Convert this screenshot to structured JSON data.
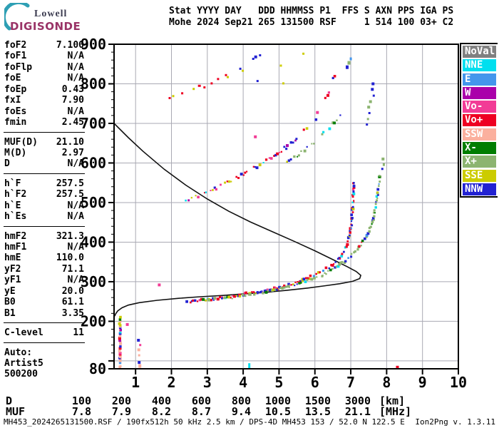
{
  "logo": {
    "line1": "Lowell",
    "line2": "DIGISONDE"
  },
  "header": {
    "line1": "Stat YYYY DAY   DDD HHMMSS P1  FFS S AXN PPS IGA PS",
    "line2": "Mohe 2024 Sep21 265 131500 RSF     1 514 100 03+ C2"
  },
  "panel": {
    "sections": [
      [
        [
          "foF2",
          "7.100"
        ],
        [
          "foF1",
          "N/A"
        ],
        [
          "foFlp",
          "N/A"
        ],
        [
          "foE",
          "N/A"
        ],
        [
          "foEp",
          "0.43"
        ],
        [
          "fxI",
          "7.90"
        ],
        [
          "foEs",
          "N/A"
        ],
        [
          "fmin",
          "2.45"
        ]
      ],
      [
        [
          "MUF(D)",
          "21.10"
        ],
        [
          "M(D)",
          "2.97"
        ],
        [
          "D",
          "N/A"
        ]
      ],
      [
        [
          "h`F",
          "257.5"
        ],
        [
          "h`F2",
          "257.5"
        ],
        [
          "h`E",
          "N/A"
        ],
        [
          "h`Es",
          "N/A"
        ]
      ],
      [
        [
          "hmF2",
          "321.3"
        ],
        [
          "hmF1",
          "N/A"
        ],
        [
          "hmE",
          "110.0"
        ],
        [
          "yF2",
          "71.1"
        ],
        [
          "yF1",
          "N/A"
        ],
        [
          "yE",
          "20.0"
        ],
        [
          "B0",
          "61.1"
        ],
        [
          "B1",
          "3.35"
        ]
      ],
      [
        [
          "C-level",
          "11"
        ]
      ],
      [
        [
          "Auto:",
          ""
        ],
        [
          "Artist5",
          ""
        ],
        [
          "500200",
          ""
        ]
      ]
    ]
  },
  "legend": {
    "items": [
      {
        "key": "noval",
        "label": "NoVal",
        "color": "#808080"
      },
      {
        "key": "nne",
        "label": "NNE",
        "color": "#00DFEF"
      },
      {
        "key": "e",
        "label": "E",
        "color": "#4496EC"
      },
      {
        "key": "w",
        "label": "W",
        "color": "#AA00AA"
      },
      {
        "key": "vo_minus",
        "label": "Vo-",
        "color": "#F23C96"
      },
      {
        "key": "vo_plus",
        "label": "Vo+",
        "color": "#EE0022"
      },
      {
        "key": "ssw",
        "label": "SSW",
        "color": "#FBB09E"
      },
      {
        "key": "x_minus",
        "label": "X-",
        "color": "#007D00"
      },
      {
        "key": "x_plus",
        "label": "X+",
        "color": "#8CB470"
      },
      {
        "key": "sse",
        "label": "SSE",
        "color": "#CCCC00"
      },
      {
        "key": "nnw",
        "label": "NNW",
        "color": "#2222D2"
      }
    ]
  },
  "distance_table": {
    "row1_label": "D",
    "row2_label": "MUF",
    "distances": [
      "100",
      "200",
      "400",
      "600",
      "800",
      "1000",
      "1500",
      "3000"
    ],
    "distance_unit": "[km]",
    "muf_values": [
      "7.8",
      "7.9",
      "8.2",
      "8.7",
      "9.4",
      "10.5",
      "13.5",
      "21.1"
    ],
    "muf_unit": "[MHz]"
  },
  "status_bar": {
    "left": "MH453_2024265131500.RSF / 190fx512h 50 kHz 2.5 km / DPS-4D MH453 153 / 52.0 N 122.5 E",
    "right": "Ion2Png v. 1.3.11"
  },
  "chart_data": {
    "type": "scatter",
    "title": "",
    "xlabel": "",
    "ylabel": "",
    "x_range": [
      0.4,
      10
    ],
    "y_range": [
      80,
      900
    ],
    "x_ticks": [
      1,
      2,
      3,
      4,
      5,
      6,
      7,
      8,
      9,
      10
    ],
    "y_labeled_ticks": [
      900,
      800,
      700,
      600,
      500,
      400,
      300,
      200,
      80
    ],
    "y_minor_step": 20,
    "grid_x": [
      1,
      2,
      3,
      4,
      5,
      6,
      7,
      8,
      9,
      10
    ],
    "grid_y": [
      100,
      200,
      300,
      400,
      500,
      600,
      700,
      800,
      900
    ],
    "grid_color": "#a9a9b3",
    "profile_curve": [
      [
        0.4,
        700
      ],
      [
        0.8,
        664
      ],
      [
        1.2,
        630
      ],
      [
        1.8,
        584
      ],
      [
        2.4,
        544
      ],
      [
        3.0,
        509
      ],
      [
        3.6,
        478
      ],
      [
        4.2,
        451
      ],
      [
        4.8,
        427
      ],
      [
        5.4,
        403
      ],
      [
        6.0,
        378
      ],
      [
        6.5,
        356
      ],
      [
        6.9,
        338
      ],
      [
        7.15,
        326
      ],
      [
        7.28,
        316
      ],
      [
        7.25,
        308
      ],
      [
        7.05,
        301
      ],
      [
        6.7,
        295
      ],
      [
        6.3,
        290
      ],
      [
        5.8,
        284
      ],
      [
        5.2,
        278
      ],
      [
        4.6,
        273
      ],
      [
        4.0,
        269
      ],
      [
        3.4,
        265
      ],
      [
        2.8,
        262
      ],
      [
        2.2,
        258
      ],
      [
        1.6,
        253
      ],
      [
        1.1,
        247
      ],
      [
        0.8,
        241
      ],
      [
        0.62,
        234
      ],
      [
        0.5,
        226
      ],
      [
        0.44,
        218
      ],
      [
        0.42,
        213
      ]
    ],
    "traces": [
      {
        "name": "F-trace-1hop-O",
        "step": 2.2,
        "p": 0.88,
        "size": [
          2,
          4
        ],
        "jitter": 4,
        "colors": {
          "vo_plus": 45,
          "nnw": 30,
          "vo_minus": 8,
          "sse": 7,
          "nne": 4,
          "x_minus": 3,
          "e": 3
        },
        "pts": [
          [
            2.38,
            249
          ],
          [
            2.7,
            251
          ],
          [
            3.1,
            256
          ],
          [
            3.6,
            262
          ],
          [
            4.1,
            269
          ],
          [
            4.6,
            277
          ],
          [
            5.0,
            286
          ],
          [
            5.4,
            296
          ],
          [
            5.8,
            309
          ],
          [
            6.1,
            321
          ],
          [
            6.4,
            336
          ],
          [
            6.65,
            355
          ],
          [
            6.85,
            380
          ],
          [
            6.95,
            412
          ],
          [
            7.02,
            450
          ],
          [
            7.06,
            495
          ],
          [
            7.08,
            555
          ]
        ]
      },
      {
        "name": "F-trace-1hop-X",
        "step": 2.4,
        "p": 0.8,
        "size": [
          2,
          4
        ],
        "jitter": 4,
        "colors": {
          "x_plus": 48,
          "nnw": 22,
          "x_minus": 10,
          "nne": 6,
          "sse": 6,
          "e": 4,
          "vo_plus": 4
        },
        "pts": [
          [
            3.05,
            253
          ],
          [
            3.6,
            259
          ],
          [
            4.1,
            266
          ],
          [
            4.6,
            274
          ],
          [
            5.1,
            284
          ],
          [
            5.6,
            296
          ],
          [
            6.05,
            311
          ],
          [
            6.45,
            328
          ],
          [
            6.85,
            352
          ],
          [
            7.15,
            378
          ],
          [
            7.4,
            408
          ],
          [
            7.58,
            445
          ],
          [
            7.7,
            490
          ],
          [
            7.78,
            540
          ],
          [
            7.82,
            575
          ]
        ]
      },
      {
        "name": "F-trace-2hop-O",
        "step": 3,
        "p": 0.72,
        "size": [
          2,
          4
        ],
        "jitter": 5,
        "colors": {
          "vo_plus": 32,
          "nnw": 28,
          "vo_minus": 18,
          "sse": 12,
          "nne": 6,
          "w": 4
        },
        "pts": [
          [
            2.42,
            507
          ],
          [
            2.8,
            519
          ],
          [
            3.2,
            535
          ],
          [
            3.6,
            552
          ],
          [
            4.0,
            571
          ],
          [
            4.4,
            592
          ],
          [
            4.8,
            615
          ],
          [
            5.2,
            640
          ],
          [
            5.55,
            665
          ]
        ]
      },
      {
        "name": "F-trace-2hop-O-top",
        "step": 5,
        "p": 0.5,
        "size": [
          3,
          4
        ],
        "jitter": 6,
        "colors": {
          "vo_plus": 75,
          "vo_minus": 10,
          "sse": 10,
          "nnw": 5
        },
        "pts": [
          [
            5.7,
            680
          ],
          [
            5.95,
            705
          ],
          [
            6.15,
            732
          ],
          [
            6.3,
            760
          ],
          [
            6.45,
            790
          ],
          [
            6.55,
            820
          ],
          [
            6.6,
            838
          ]
        ]
      },
      {
        "name": "F-trace-2hop-X",
        "step": 3.5,
        "p": 0.62,
        "size": [
          2,
          4
        ],
        "jitter": 5,
        "colors": {
          "x_plus": 55,
          "nnw": 20,
          "x_minus": 10,
          "sse": 8,
          "nne": 7
        },
        "pts": [
          [
            5.15,
            596
          ],
          [
            5.5,
            618
          ],
          [
            5.85,
            642
          ],
          [
            6.15,
            665
          ],
          [
            6.4,
            688
          ],
          [
            6.6,
            710
          ],
          [
            6.75,
            730
          ]
        ]
      },
      {
        "name": "noise-column",
        "step": 2.2,
        "p": 0.92,
        "size": [
          3,
          4
        ],
        "jitter": 2,
        "colors": {
          "ssw": 38,
          "vo_plus": 14,
          "sse": 10,
          "w": 8,
          "nnw": 7,
          "vo_minus": 7,
          "x_minus": 6,
          "nne": 5,
          "e": 5
        },
        "pts": [
          [
            0.57,
            80
          ],
          [
            0.57,
            215
          ]
        ]
      }
    ],
    "extra_points": [
      [
        4.17,
        86,
        "nne",
        3,
        9
      ],
      [
        8.3,
        84,
        "vo_plus",
        4,
        4
      ],
      [
        1.08,
        152,
        "nnw",
        4,
        4
      ],
      [
        1.09,
        128,
        "ssw",
        4,
        4
      ],
      [
        1.1,
        96,
        "nnw",
        4,
        4
      ],
      [
        1.12,
        87,
        "ssw",
        4,
        5
      ],
      [
        1.1,
        114,
        "ssw",
        3,
        3
      ],
      [
        1.13,
        140,
        "vo_minus",
        3,
        3
      ],
      [
        0.77,
        192,
        "vo_minus",
        4,
        4
      ],
      [
        1.66,
        292,
        "vo_minus",
        4,
        4
      ],
      [
        4.34,
        666,
        "vo_minus",
        4,
        4
      ],
      [
        2.78,
        795,
        "vo_plus",
        4,
        3
      ],
      [
        2.92,
        791,
        "vo_plus",
        3,
        3
      ],
      [
        3.12,
        801,
        "vo_plus",
        3,
        3
      ],
      [
        3.3,
        812,
        "vo_plus",
        3,
        3
      ],
      [
        2.62,
        787,
        "sse",
        3,
        3
      ],
      [
        3.52,
        822,
        "vo_plus",
        3,
        3
      ],
      [
        3.57,
        817,
        "sse",
        3,
        3
      ],
      [
        2.3,
        776,
        "vo_plus",
        3,
        3
      ],
      [
        2.05,
        769,
        "sse",
        3,
        3
      ],
      [
        1.95,
        764,
        "vo_plus",
        3,
        3
      ],
      [
        4.35,
        868,
        "nnw",
        4,
        4
      ],
      [
        4.47,
        872,
        "nnw",
        3,
        3
      ],
      [
        4.28,
        863,
        "nnw",
        3,
        3
      ],
      [
        3.92,
        838,
        "nnw",
        3,
        3
      ],
      [
        3.99,
        833,
        "sse",
        3,
        3
      ],
      [
        5.05,
        846,
        "sse",
        3,
        3
      ],
      [
        5.12,
        801,
        "sse",
        3,
        3
      ],
      [
        4.4,
        807,
        "nnw",
        3,
        3
      ],
      [
        5.68,
        876,
        "sse",
        3,
        3
      ],
      [
        6.9,
        842,
        "nnw",
        4,
        5
      ],
      [
        6.95,
        853,
        "x_plus",
        4,
        5
      ],
      [
        7.0,
        863,
        "e",
        3,
        4
      ],
      [
        7.62,
        800,
        "nnw",
        4,
        4
      ],
      [
        7.6,
        786,
        "nnw",
        4,
        4
      ],
      [
        7.64,
        770,
        "nnw",
        3,
        3
      ],
      [
        7.55,
        755,
        "x_plus",
        4,
        4
      ],
      [
        7.5,
        741,
        "x_plus",
        4,
        4
      ],
      [
        7.52,
        726,
        "nnw",
        3,
        3
      ],
      [
        7.48,
        711,
        "x_plus",
        3,
        3
      ],
      [
        7.45,
        697,
        "nnw",
        3,
        3
      ],
      [
        7.9,
        610,
        "x_plus",
        4,
        4
      ],
      [
        7.92,
        596,
        "x_plus",
        3,
        4
      ],
      [
        7.88,
        585,
        "nnw",
        3,
        3
      ]
    ]
  }
}
